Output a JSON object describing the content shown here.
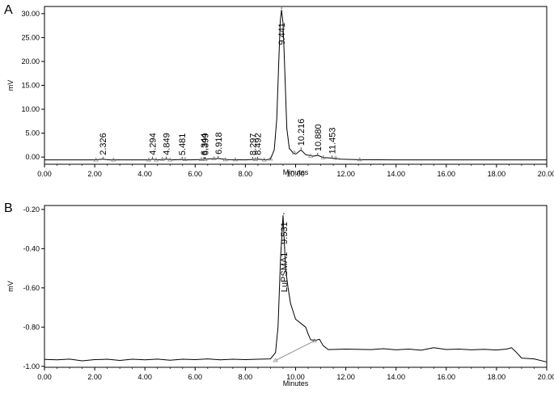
{
  "chart_data": [
    {
      "type": "line",
      "panel_label": "A",
      "xlabel": "Minutes",
      "ylabel": "mV",
      "xlim": [
        0,
        20
      ],
      "ylim": [
        -1.5,
        31.5
      ],
      "x_ticks": [
        "0.00",
        "2.00",
        "4.00",
        "6.00",
        "8.00",
        "10.00",
        "12.00",
        "14.00",
        "16.00",
        "18.00",
        "20.00"
      ],
      "y_ticks": [
        {
          "value": 30,
          "label": "30.00"
        },
        {
          "value": 25,
          "label": "25.00"
        },
        {
          "value": 20,
          "label": "20.00"
        },
        {
          "value": 15,
          "label": "15.00"
        },
        {
          "value": 10,
          "label": "10.00"
        },
        {
          "value": 5,
          "label": "5.00"
        },
        {
          "value": 0,
          "label": "0.00"
        }
      ],
      "trace": [
        [
          0,
          -0.6
        ],
        [
          2.0,
          -0.6
        ],
        [
          2.32,
          -0.45
        ],
        [
          2.6,
          -0.6
        ],
        [
          4.2,
          -0.6
        ],
        [
          4.29,
          -0.45
        ],
        [
          4.5,
          -0.6
        ],
        [
          4.85,
          -0.45
        ],
        [
          5.1,
          -0.6
        ],
        [
          5.48,
          -0.5
        ],
        [
          5.8,
          -0.6
        ],
        [
          6.3,
          -0.5
        ],
        [
          6.6,
          -0.35
        ],
        [
          6.92,
          -0.3
        ],
        [
          7.3,
          -0.55
        ],
        [
          8.0,
          -0.6
        ],
        [
          8.3,
          -0.5
        ],
        [
          8.5,
          -0.45
        ],
        [
          8.8,
          -0.6
        ],
        [
          9.0,
          -0.4
        ],
        [
          9.15,
          1.5
        ],
        [
          9.25,
          8.0
        ],
        [
          9.33,
          20.0
        ],
        [
          9.39,
          28.5
        ],
        [
          9.44,
          30.8
        ],
        [
          9.5,
          28.0
        ],
        [
          9.57,
          18.0
        ],
        [
          9.65,
          6.0
        ],
        [
          9.75,
          1.8
        ],
        [
          9.9,
          0.9
        ],
        [
          10.0,
          0.6
        ],
        [
          10.216,
          1.5
        ],
        [
          10.4,
          0.5
        ],
        [
          10.7,
          0.2
        ],
        [
          10.88,
          0.35
        ],
        [
          11.1,
          -0.1
        ],
        [
          11.45,
          -0.2
        ],
        [
          11.8,
          -0.45
        ],
        [
          12.5,
          -0.55
        ],
        [
          14.0,
          -0.6
        ],
        [
          20.0,
          -0.6
        ]
      ],
      "peak_labels": [
        "2.326",
        "4.294",
        "4.849",
        "5.481",
        "6.344",
        "6.399",
        "6.918",
        "8.297",
        "8.492",
        "9.441",
        "10.216",
        "10.880",
        "11.453"
      ],
      "peak_times": [
        2.326,
        4.294,
        4.849,
        5.481,
        6.344,
        6.399,
        6.918,
        8.297,
        8.492,
        9.441,
        10.216,
        10.88,
        11.453
      ],
      "integration_marks": [
        2.05,
        2.75,
        4.15,
        4.45,
        4.7,
        5.0,
        5.6,
        6.25,
        6.4,
        6.75,
        7.2,
        7.6,
        8.4,
        8.75,
        9.0,
        9.95,
        10.6,
        11.1,
        11.6,
        12.55
      ]
    },
    {
      "type": "line",
      "panel_label": "B",
      "xlabel": "Minutes",
      "ylabel": "mV",
      "xlim": [
        0,
        20
      ],
      "ylim": [
        -1.005,
        -0.18
      ],
      "x_ticks": [
        "0.00",
        "2.00",
        "4.00",
        "6.00",
        "8.00",
        "10.00",
        "12.00",
        "14.00",
        "16.00",
        "18.00",
        "20.00"
      ],
      "y_ticks": [
        {
          "value": -0.2,
          "label": "-0.20"
        },
        {
          "value": -0.4,
          "label": "-0.40"
        },
        {
          "value": -0.6,
          "label": "-0.60"
        },
        {
          "value": -0.8,
          "label": "-0.80"
        },
        {
          "value": -1.0,
          "label": "-1.00"
        }
      ],
      "trace": [
        [
          0,
          -0.965
        ],
        [
          0.5,
          -0.967
        ],
        [
          1.0,
          -0.963
        ],
        [
          1.5,
          -0.972
        ],
        [
          2.0,
          -0.966
        ],
        [
          2.5,
          -0.964
        ],
        [
          3.0,
          -0.97
        ],
        [
          3.5,
          -0.964
        ],
        [
          4.0,
          -0.967
        ],
        [
          4.5,
          -0.963
        ],
        [
          5.0,
          -0.969
        ],
        [
          5.5,
          -0.964
        ],
        [
          6.0,
          -0.966
        ],
        [
          6.5,
          -0.962
        ],
        [
          7.0,
          -0.967
        ],
        [
          7.5,
          -0.964
        ],
        [
          8.0,
          -0.966
        ],
        [
          8.5,
          -0.964
        ],
        [
          9.0,
          -0.962
        ],
        [
          9.2,
          -0.93
        ],
        [
          9.3,
          -0.8
        ],
        [
          9.4,
          -0.45
        ],
        [
          9.5,
          -0.23
        ],
        [
          9.6,
          -0.5
        ],
        [
          9.7,
          -0.6
        ],
        [
          9.8,
          -0.68
        ],
        [
          9.9,
          -0.72
        ],
        [
          10.0,
          -0.76
        ],
        [
          10.2,
          -0.78
        ],
        [
          10.4,
          -0.8
        ],
        [
          10.5,
          -0.835
        ],
        [
          10.6,
          -0.865
        ],
        [
          10.8,
          -0.867
        ],
        [
          10.95,
          -0.862
        ],
        [
          11.1,
          -0.895
        ],
        [
          11.3,
          -0.915
        ],
        [
          12.0,
          -0.912
        ],
        [
          13.0,
          -0.915
        ],
        [
          13.5,
          -0.91
        ],
        [
          14.0,
          -0.916
        ],
        [
          14.5,
          -0.912
        ],
        [
          15.0,
          -0.918
        ],
        [
          15.5,
          -0.905
        ],
        [
          16.0,
          -0.914
        ],
        [
          16.5,
          -0.912
        ],
        [
          17.0,
          -0.916
        ],
        [
          17.5,
          -0.913
        ],
        [
          18.0,
          -0.917
        ],
        [
          18.4,
          -0.912
        ],
        [
          18.6,
          -0.905
        ],
        [
          18.8,
          -0.93
        ],
        [
          19.0,
          -0.958
        ],
        [
          19.5,
          -0.962
        ],
        [
          20.0,
          -0.978
        ]
      ],
      "baseline": [
        [
          9.2,
          -0.97
        ],
        [
          10.75,
          -0.87
        ]
      ],
      "baseline_marks": [
        9.2,
        10.75
      ],
      "peak_labels": [
        "LuPSMA1 - 9.531"
      ],
      "peak_times": [
        9.531
      ]
    }
  ]
}
